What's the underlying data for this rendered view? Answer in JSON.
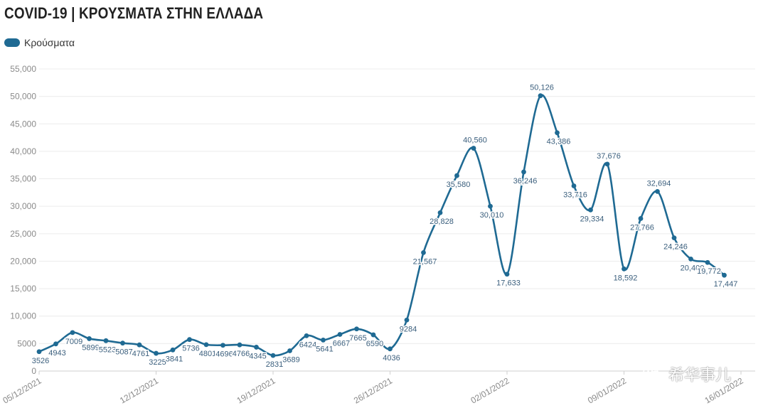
{
  "title": "COVID-19 | ΚΡΟΥΣΜΑΤΑ ΣΤΗΝ ΕΛΛΑΔΑ",
  "legend": {
    "label": "Κρούσματα",
    "color": "#1f6a93"
  },
  "watermark": {
    "text": "希华事儿",
    "icon": "wechat-icon"
  },
  "chart_data": {
    "type": "line",
    "title": "COVID-19 | ΚΡΟΥΣΜΑΤΑ ΣΤΗΝ ΕΛΛΑΔΑ",
    "xlabel": "",
    "ylabel": "",
    "ylim": [
      0,
      55000
    ],
    "yticks": [
      0,
      5000,
      10000,
      15000,
      20000,
      25000,
      30000,
      35000,
      40000,
      45000,
      50000,
      55000
    ],
    "ytick_labels": [
      "0",
      "5000",
      "10,000",
      "15,000",
      "20,000",
      "25,000",
      "30,000",
      "35,000",
      "40,000",
      "45,000",
      "50,000",
      "55,000"
    ],
    "xtick_labels": [
      "05/12/2021",
      "12/12/2021",
      "19/12/2021",
      "26/12/2021",
      "02/01/2022",
      "09/01/2022",
      "16/01/2022"
    ],
    "grid": true,
    "legend_position": "top-left",
    "series": [
      {
        "name": "Κρούσματα",
        "color": "#1f6a93",
        "x": [
          "05/12/2021",
          "06/12/2021",
          "07/12/2021",
          "08/12/2021",
          "09/12/2021",
          "10/12/2021",
          "11/12/2021",
          "12/12/2021",
          "13/12/2021",
          "14/12/2021",
          "15/12/2021",
          "16/12/2021",
          "17/12/2021",
          "18/12/2021",
          "19/12/2021",
          "20/12/2021",
          "21/12/2021",
          "22/12/2021",
          "23/12/2021",
          "24/12/2021",
          "25/12/2021",
          "26/12/2021",
          "27/12/2021",
          "28/12/2021",
          "29/12/2021",
          "30/12/2021",
          "31/12/2021",
          "01/01/2022",
          "02/01/2022",
          "03/01/2022",
          "04/01/2022",
          "05/01/2022",
          "06/01/2022",
          "07/01/2022",
          "08/01/2022",
          "09/01/2022",
          "10/01/2022",
          "11/01/2022",
          "12/01/2022",
          "13/01/2022",
          "14/01/2022",
          "15/01/2022",
          "16/01/2022"
        ],
        "values": [
          3526,
          4943,
          7009,
          5899,
          5523,
          5087,
          4761,
          3225,
          3841,
          5736,
          4801,
          4696,
          4766,
          4345,
          2831,
          3689,
          6424,
          5641,
          6667,
          7665,
          6590,
          4036,
          9284,
          21567,
          28828,
          35580,
          40560,
          30010,
          17633,
          36246,
          50126,
          43386,
          33716,
          29334,
          37676,
          18592,
          27766,
          32694,
          24246,
          20400,
          19772,
          17447,
          null
        ],
        "labels": [
          "3526",
          "4943",
          "7009",
          "5899",
          "5523",
          "5087",
          "4761",
          "3225",
          "3841",
          "5736",
          "4801",
          "4696",
          "4766",
          "4345",
          "2831",
          "3689",
          "6424",
          "5641",
          "6667",
          "7665",
          "6590",
          "4036",
          "9284",
          "21,567",
          "28,828",
          "35,580",
          "40,560",
          "30,010",
          "17,633",
          "36,246",
          "50,126",
          "43,386",
          "33,716",
          "29,334",
          "37,676",
          "18,592",
          "27,766",
          "32,694",
          "24,246",
          "20,400",
          "19,772",
          "17,447",
          ""
        ]
      }
    ]
  }
}
